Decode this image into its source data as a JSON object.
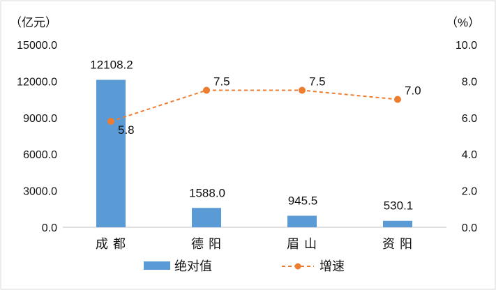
{
  "chart_data": {
    "type": "bar",
    "categories": [
      "成 都",
      "德 阳",
      "眉 山",
      "资 阳"
    ],
    "series": [
      {
        "name": "绝对值",
        "type": "bar",
        "axis": "left",
        "values": [
          12108.2,
          1588.0,
          945.5,
          530.1
        ],
        "labels": [
          "12108.2",
          "1588.0",
          "945.5",
          "530.1"
        ],
        "color": "#5b9bd5"
      },
      {
        "name": "增速",
        "type": "line",
        "axis": "right",
        "line_style": "dashed",
        "values": [
          5.8,
          7.5,
          7.5,
          7.0
        ],
        "labels": [
          "5.8",
          "7.5",
          "7.5",
          "7.0"
        ],
        "color": "#ed7d31"
      }
    ],
    "y_left": {
      "unit": "（亿元）",
      "ylim": [
        0,
        15000
      ],
      "ticks": [
        "0.0",
        "3000.0",
        "6000.0",
        "9000.0",
        "12000.0",
        "15000.0"
      ]
    },
    "y_right": {
      "unit": "（%）",
      "ylim": [
        0,
        10
      ],
      "ticks": [
        "0.0",
        "2.0",
        "4.0",
        "6.0",
        "8.0",
        "10.0"
      ]
    },
    "grid": false,
    "legend_position": "bottom"
  }
}
